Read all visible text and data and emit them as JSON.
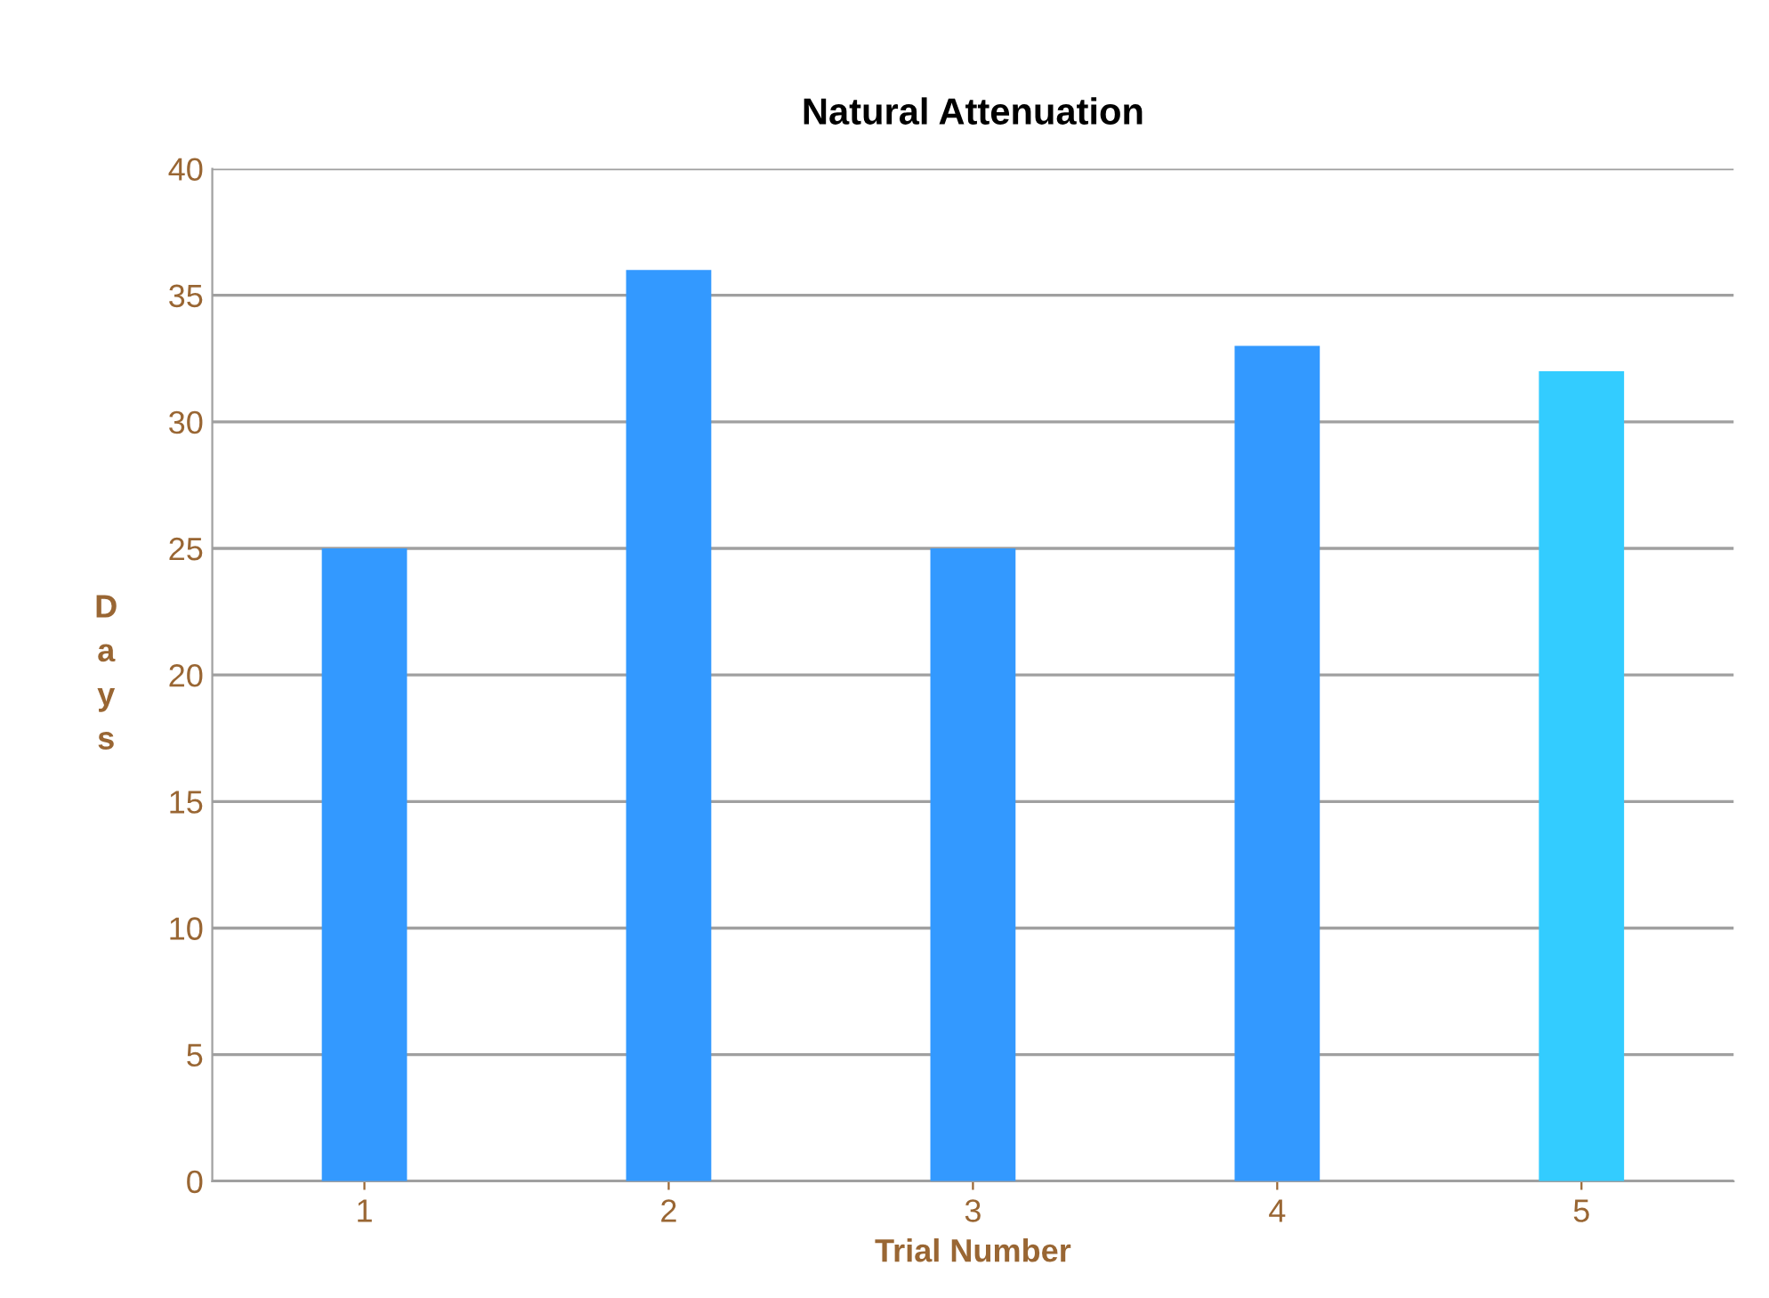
{
  "chart_data": {
    "type": "bar",
    "title": "Natural Attenuation",
    "xlabel": "Trial Number",
    "ylabel": "Days",
    "categories": [
      "1",
      "2",
      "3",
      "4",
      "5"
    ],
    "values": [
      25,
      36,
      25,
      33,
      32
    ],
    "colors": [
      "#3399ff",
      "#3399ff",
      "#3399ff",
      "#3399ff",
      "#33ccff"
    ],
    "ylim": [
      0,
      40
    ],
    "yticks": [
      0,
      5,
      10,
      15,
      20,
      25,
      30,
      35,
      40
    ],
    "grid": "y",
    "legend": false
  }
}
